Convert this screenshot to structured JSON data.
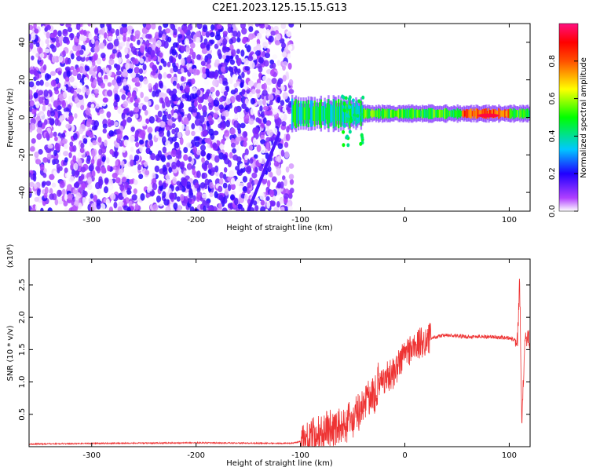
{
  "title": "C2E1.2023.125.15.15.G13",
  "chart_data": [
    {
      "type": "heatmap",
      "xlabel": "Height of straight line (km)",
      "ylabel": "Frequency (Hz)",
      "xlim": [
        -360,
        120
      ],
      "ylim": [
        -50,
        50
      ],
      "xticks": [
        -300,
        -200,
        -100,
        0,
        100
      ],
      "yticks": [
        -40,
        -20,
        0,
        20,
        40
      ],
      "colorbar": {
        "label": "Normalized spectral amplitude",
        "range": [
          0.0,
          1.0
        ],
        "ticks": [
          0.0,
          0.2,
          0.4,
          0.6,
          0.8
        ]
      },
      "regions": [
        {
          "x_range": [
            -360,
            -108
          ],
          "freq_range": [
            -50,
            50
          ],
          "amplitude_range": [
            0.0,
            0.2
          ]
        },
        {
          "x_range": [
            -108,
            120
          ],
          "center_freq": 2,
          "amplitude_range": [
            0.3,
            1.0
          ]
        }
      ],
      "peak": {
        "x": 80,
        "freq": 1,
        "amplitude": 0.95
      }
    },
    {
      "type": "line",
      "xlabel": "Height of straight line (km)",
      "ylabel": "SNR (10 * v/v)",
      "yscale_label": "(x10⁴)",
      "xlim": [
        -360,
        120
      ],
      "ylim": [
        0,
        2.9
      ],
      "xticks": [
        -300,
        -200,
        -100,
        0,
        100
      ],
      "yticks": [
        0.5,
        1.0,
        1.5,
        2.0,
        2.5
      ],
      "ytick_labels": [
        "0.5",
        "1.0",
        "1.5",
        "2.0",
        "2.5"
      ],
      "series": [
        {
          "color": "#ee3333",
          "x": [
            -360,
            -300,
            -200,
            -110,
            -100,
            -90,
            -80,
            -70,
            -60,
            -50,
            -40,
            -35,
            -30,
            -25,
            -20,
            -15,
            -10,
            -5,
            0,
            10,
            20,
            30,
            40,
            60,
            80,
            100,
            108,
            110,
            112,
            115,
            120
          ],
          "y": [
            0.04,
            0.05,
            0.06,
            0.05,
            0.08,
            0.12,
            0.2,
            0.3,
            0.35,
            0.4,
            0.6,
            0.8,
            0.7,
            1.0,
            1.05,
            1.1,
            1.15,
            1.3,
            1.45,
            1.55,
            1.65,
            1.7,
            1.72,
            1.7,
            1.7,
            1.68,
            1.65,
            2.6,
            0.3,
            1.7,
            1.66
          ]
        }
      ]
    }
  ]
}
